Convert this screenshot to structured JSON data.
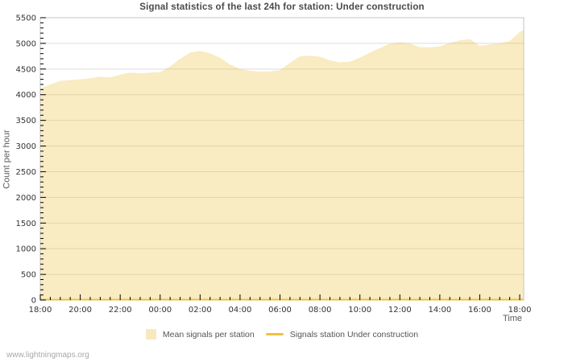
{
  "title": "Signal statistics of the last 24h for station: Under construction",
  "watermark": "www.lightningmaps.org",
  "axes": {
    "y_label": "Count per hour",
    "x_label": "Time",
    "y_tick_labels": [
      "0",
      "500",
      "1000",
      "1500",
      "2000",
      "2500",
      "3000",
      "3500",
      "4000",
      "4500",
      "5000",
      "5500"
    ],
    "x_tick_labels": [
      "18:00",
      "20:00",
      "22:00",
      "00:00",
      "02:00",
      "04:00",
      "06:00",
      "08:00",
      "10:00",
      "12:00",
      "14:00",
      "16:00",
      "18:00"
    ]
  },
  "legend": {
    "items": [
      {
        "label": "Mean signals per station",
        "swatch": "area",
        "color": "#f9e8bf"
      },
      {
        "label": "Signals station Under construction",
        "swatch": "line",
        "color": "#edc240"
      }
    ]
  },
  "colors": {
    "series_line": "#edc240",
    "series_fill": "rgba(237,194,64,0.32)",
    "gridline": "#dcdcdc",
    "plot_border": "#c6c6c6",
    "tick_mark": "#000000",
    "tick_label": "#333333"
  },
  "chart_data": {
    "type": "area",
    "title": "Signal statistics of the last 24h for station: Under construction",
    "xlabel": "Time",
    "ylabel": "Count per hour",
    "x_start_label": "18:00",
    "x_unit": "hours after 18:00",
    "xlim_hours": [
      0,
      24.2
    ],
    "ylim": [
      0,
      5500
    ],
    "y_major_step": 500,
    "y_minor_step": 100,
    "x_major_step_hours": 2,
    "x_minor_step_hours": 0.5,
    "grid": "horizontal-only",
    "legend_position": "bottom-center",
    "x": [
      0,
      0.5,
      1,
      1.5,
      2,
      2.5,
      3,
      3.5,
      4,
      4.5,
      5,
      5.5,
      6,
      6.5,
      7,
      7.5,
      8,
      8.5,
      9,
      9.5,
      10,
      10.5,
      11,
      11.5,
      12,
      12.5,
      13,
      13.5,
      14,
      14.5,
      15,
      15.5,
      16,
      16.5,
      17,
      17.5,
      18,
      18.5,
      19,
      19.5,
      20,
      20.5,
      21,
      21.5,
      22,
      22.5,
      23,
      23.5,
      24,
      24.2
    ],
    "series": [
      {
        "name": "Mean signals per station",
        "type": "area",
        "line_color": "#edc240",
        "fill_color": "rgba(237,194,64,0.32)",
        "values": [
          4120,
          4200,
          4270,
          4285,
          4300,
          4320,
          4350,
          4335,
          4390,
          4430,
          4415,
          4430,
          4440,
          4550,
          4700,
          4820,
          4855,
          4805,
          4720,
          4590,
          4500,
          4465,
          4450,
          4455,
          4480,
          4620,
          4750,
          4760,
          4740,
          4670,
          4630,
          4645,
          4720,
          4820,
          4910,
          4995,
          5020,
          5000,
          4925,
          4925,
          4940,
          5010,
          5060,
          5085,
          4950,
          4980,
          5000,
          5045,
          5220,
          5260
        ]
      },
      {
        "name": "Signals station Under construction",
        "type": "line",
        "line_color": "#edc240",
        "constant_value": 0
      }
    ]
  }
}
